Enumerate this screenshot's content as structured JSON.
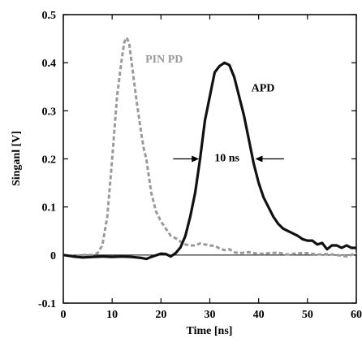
{
  "chart_data": {
    "type": "line",
    "title": "",
    "xlabel": "Time [ns]",
    "ylabel": "Singanl [V]",
    "xlim": [
      0,
      60
    ],
    "ylim": [
      -0.1,
      0.5
    ],
    "xticks": [
      0,
      10,
      20,
      30,
      40,
      50,
      60
    ],
    "yticks": [
      -0.1,
      0,
      0.1,
      0.2,
      0.3,
      0.4,
      0.5
    ],
    "xtick_labels": [
      "0",
      "10",
      "20",
      "30",
      "40",
      "50",
      "60"
    ],
    "ytick_labels": [
      "-0.1",
      "0",
      "0.1",
      "0.2",
      "0.3",
      "0.4",
      "0.5"
    ],
    "grid": false,
    "series": [
      {
        "name": "PIN PD",
        "color": "#9a9a9a",
        "dash": "dashed",
        "x": [
          0,
          2,
          4,
          6,
          7,
          8,
          9,
          10,
          11,
          12,
          12.5,
          13,
          13.5,
          14,
          15,
          16,
          16.5,
          17,
          18,
          19,
          20,
          21,
          22,
          23,
          24,
          25,
          26,
          27,
          28,
          29,
          30,
          31,
          32,
          33,
          34,
          35,
          36,
          38,
          40,
          42,
          44,
          46,
          48,
          50,
          52,
          54,
          56,
          58,
          60
        ],
        "y": [
          0.0,
          -0.002,
          0.0,
          0.0,
          0.004,
          0.02,
          0.08,
          0.2,
          0.33,
          0.41,
          0.443,
          0.452,
          0.44,
          0.4,
          0.32,
          0.25,
          0.22,
          0.2,
          0.13,
          0.09,
          0.07,
          0.055,
          0.04,
          0.035,
          0.028,
          0.022,
          0.02,
          0.02,
          0.024,
          0.022,
          0.02,
          0.019,
          0.014,
          0.01,
          0.012,
          0.006,
          0.004,
          0.006,
          0.002,
          0.004,
          0.005,
          0.001,
          0.004,
          0.004,
          0.001,
          0.002,
          0.0,
          -0.003,
          0.004
        ]
      },
      {
        "name": "APD",
        "color": "#111111",
        "dash": "solid",
        "x": [
          0,
          2,
          4,
          6,
          8,
          10,
          12,
          14,
          16,
          17,
          18,
          20,
          21,
          22,
          23,
          24,
          25,
          26,
          27,
          28,
          29,
          30,
          31,
          32,
          33,
          34,
          35,
          36,
          37,
          38,
          39,
          40,
          41,
          42,
          43,
          44,
          45,
          46,
          47,
          48,
          49,
          50,
          51,
          52,
          53,
          54,
          55,
          56,
          57,
          58,
          59,
          60
        ],
        "y": [
          0.0,
          -0.003,
          -0.005,
          -0.004,
          -0.003,
          -0.004,
          -0.003,
          -0.004,
          -0.006,
          -0.008,
          -0.004,
          0.003,
          0.002,
          -0.003,
          0.004,
          0.016,
          0.04,
          0.08,
          0.13,
          0.2,
          0.28,
          0.33,
          0.38,
          0.393,
          0.4,
          0.395,
          0.37,
          0.33,
          0.29,
          0.24,
          0.19,
          0.15,
          0.12,
          0.1,
          0.08,
          0.065,
          0.055,
          0.05,
          0.045,
          0.04,
          0.033,
          0.03,
          0.03,
          0.022,
          0.025,
          0.012,
          0.02,
          0.02,
          0.015,
          0.02,
          0.015,
          0.015
        ]
      }
    ],
    "annotations": {
      "pin_label": "PIN PD",
      "apd_label": "APD",
      "width_label": "10 ns"
    }
  }
}
